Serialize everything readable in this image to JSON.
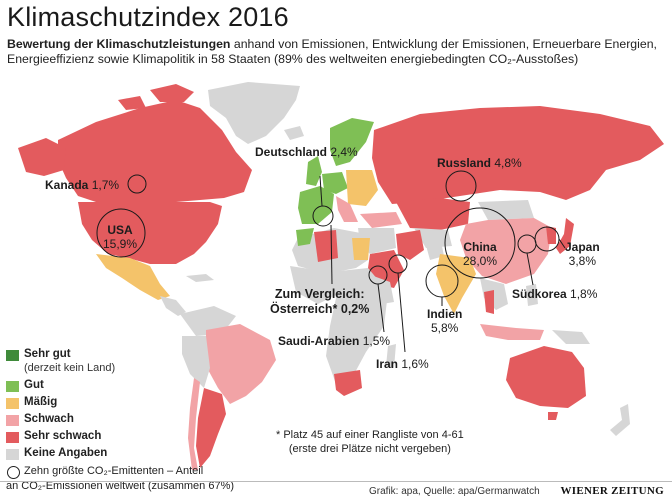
{
  "header": {
    "title": "Klimaschutzindex 2016",
    "subtitle_bold": "Bewertung der Klimaschutzleistungen",
    "subtitle_rest": " anhand von Emissionen, Entwicklung der Emissionen, Erneuerbare Energien, Energieeffizienz sowie Klimapolitik in 58 Staaten (89% des weltweiten energiebedingten CO₂-Ausstoßes)"
  },
  "colors": {
    "sehr_gut": "#3f8a3a",
    "gut": "#7fbf55",
    "maessig": "#f4c36a",
    "schwach": "#f2a3a6",
    "sehr_schwach": "#e35b5e",
    "keine_angaben": "#d6d6d6",
    "ocean": "#ffffff"
  },
  "emitters": [
    {
      "name": "USA",
      "value": "15,9%"
    },
    {
      "name": "China",
      "value": "28,0%"
    },
    {
      "name": "Russland",
      "value": "4,8%"
    },
    {
      "name": "Kanada",
      "value": "1,7%"
    },
    {
      "name": "Deutschland",
      "value": "2,4%"
    },
    {
      "name": "Japan",
      "value": "3,8%"
    },
    {
      "name": "Südkorea",
      "value": "1,8%"
    },
    {
      "name": "Indien",
      "value": "5,8%"
    },
    {
      "name": "Iran",
      "value": "1,6%"
    },
    {
      "name": "Saudi-Arabien",
      "value": "1,5%"
    }
  ],
  "comparison": {
    "line1": "Zum Vergleich:",
    "line2": "Österreich* 0,2%"
  },
  "legend": {
    "sehr_gut": "Sehr gut",
    "sehr_gut_note": "(derzeit kein Land)",
    "gut": "Gut",
    "maessig": "Mäßig",
    "schwach": "Schwach",
    "sehr_schwach": "Sehr schwach",
    "keine_angaben": "Keine Angaben",
    "circle_line1": "Zehn größte CO₂-Emittenten – Anteil",
    "circle_line2": "an CO₂-Emissionen weltweit (zusammen 67%)"
  },
  "footnote": {
    "line1": "* Platz 45 auf einer Rangliste von 4-61",
    "line2": "(erste drei Plätze nicht vergeben)"
  },
  "footer": {
    "source": "Grafik: apa, Quelle: apa/Germanwatch",
    "brand": "WIENER ZEITUNG"
  }
}
